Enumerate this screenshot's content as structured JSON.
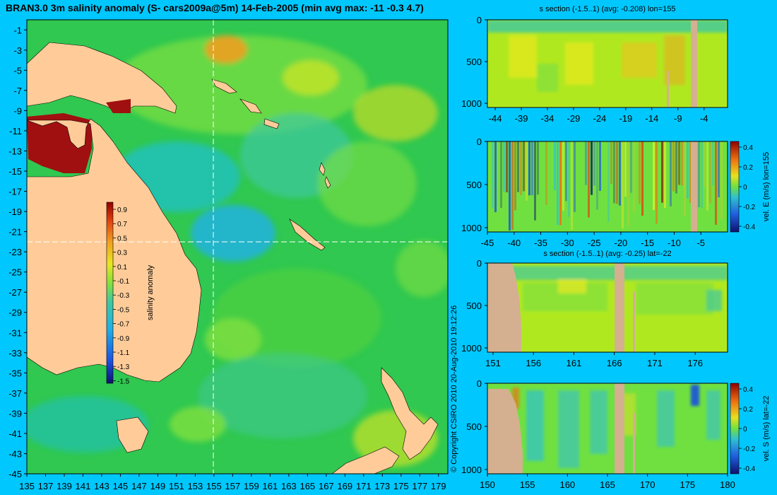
{
  "map": {
    "title": "BRAN3.0 3m salinity anomaly (S- cars2009a@5m) 14-Feb-2005 (min avg max: -11 -0.3 4.7)",
    "lat_ticks": [
      "-1",
      "-3",
      "-5",
      "-7",
      "-9",
      "-11",
      "-13",
      "-15",
      "-17",
      "-19",
      "-21",
      "-23",
      "-25",
      "-27",
      "-29",
      "-31",
      "-33",
      "-35",
      "-37",
      "-39",
      "-41",
      "-43",
      "-45"
    ],
    "lon_ticks": [
      "135",
      "137",
      "139",
      "141",
      "143",
      "145",
      "147",
      "149",
      "151",
      "153",
      "155",
      "157",
      "159",
      "161",
      "163",
      "165",
      "167",
      "169",
      "171",
      "173",
      "175",
      "177",
      "179"
    ],
    "colorbar": {
      "label": "salinity anomaly",
      "ticks": [
        "0.9",
        "0.7",
        "0.5",
        "0.3",
        "0.1",
        "-0.1",
        "-0.3",
        "-0.5",
        "-0.7",
        "-0.9",
        "-1.1",
        "-1.3",
        "-1.5"
      ]
    },
    "copyright": "© Copyright CSIRO 2010   20-Aug-2010 19:12:26"
  },
  "panels": [
    {
      "title": "s section (-1.5..1) (avg: -0.208) lon=155",
      "x_ticks": [
        "-44",
        "-39",
        "-34",
        "-29",
        "-24",
        "-19",
        "-14",
        "-9",
        "-4"
      ],
      "y_ticks": [
        "0",
        "500",
        "1000"
      ],
      "colorbar": null
    },
    {
      "title": "",
      "x_ticks": [
        "-45",
        "-40",
        "-35",
        "-30",
        "-25",
        "-20",
        "-15",
        "-10",
        "-5"
      ],
      "y_ticks": [
        "0",
        "500",
        "1000"
      ],
      "colorbar": {
        "label": "vel. E (m/s) lon=155",
        "ticks": [
          "0.4",
          "0.2",
          "0",
          "-0.2",
          "-0.4"
        ]
      }
    },
    {
      "title": "s section (-1.5..1) (avg: -0.25) lat=-22",
      "x_ticks": [
        "151",
        "156",
        "161",
        "166",
        "171",
        "176"
      ],
      "y_ticks": [
        "0",
        "500",
        "1000"
      ],
      "colorbar": null
    },
    {
      "title": "",
      "x_ticks": [
        "150",
        "155",
        "160",
        "165",
        "170",
        "175",
        "180"
      ],
      "y_ticks": [
        "0",
        "500",
        "1000"
      ],
      "colorbar": {
        "label": "vel. S (m/s) lat=-22",
        "ticks": [
          "0.4",
          "0.2",
          "0",
          "-0.2",
          "-0.4"
        ]
      }
    }
  ],
  "chart_data": [
    {
      "type": "heatmap",
      "title": "BRAN3.0 3m salinity anomaly (S- cars2009a@5m) 14-Feb-2005 (min avg max: -11 -0.3 4.7)",
      "xlabel": "",
      "ylabel": "",
      "xlim": [
        135,
        180
      ],
      "ylim": [
        -45,
        0
      ],
      "colorbar_range": [
        -1.5,
        1
      ],
      "colorbar_label": "salinity anomaly",
      "section_lines": {
        "lon": 155,
        "lat": -22
      }
    },
    {
      "type": "heatmap",
      "title": "s section (-1.5..1) (avg: -0.208) lon=155",
      "xlim": [
        -45,
        0
      ],
      "ylim": [
        1050,
        0
      ],
      "colorbar_range": [
        -1.5,
        1
      ]
    },
    {
      "type": "heatmap",
      "title": "",
      "xlim": [
        -45,
        0
      ],
      "ylim": [
        1050,
        0
      ],
      "colorbar_range": [
        -0.4,
        0.4
      ],
      "colorbar_label": "vel. E (m/s) lon=155"
    },
    {
      "type": "heatmap",
      "title": "s section (-1.5..1) (avg: -0.25) lat=-22",
      "xlim": [
        150,
        180
      ],
      "ylim": [
        1050,
        0
      ],
      "colorbar_range": [
        -1.5,
        1
      ]
    },
    {
      "type": "heatmap",
      "title": "",
      "xlim": [
        150,
        180
      ],
      "ylim": [
        1050,
        0
      ],
      "colorbar_range": [
        -0.4,
        0.4
      ],
      "colorbar_label": "vel. S (m/s) lat=-22"
    }
  ]
}
